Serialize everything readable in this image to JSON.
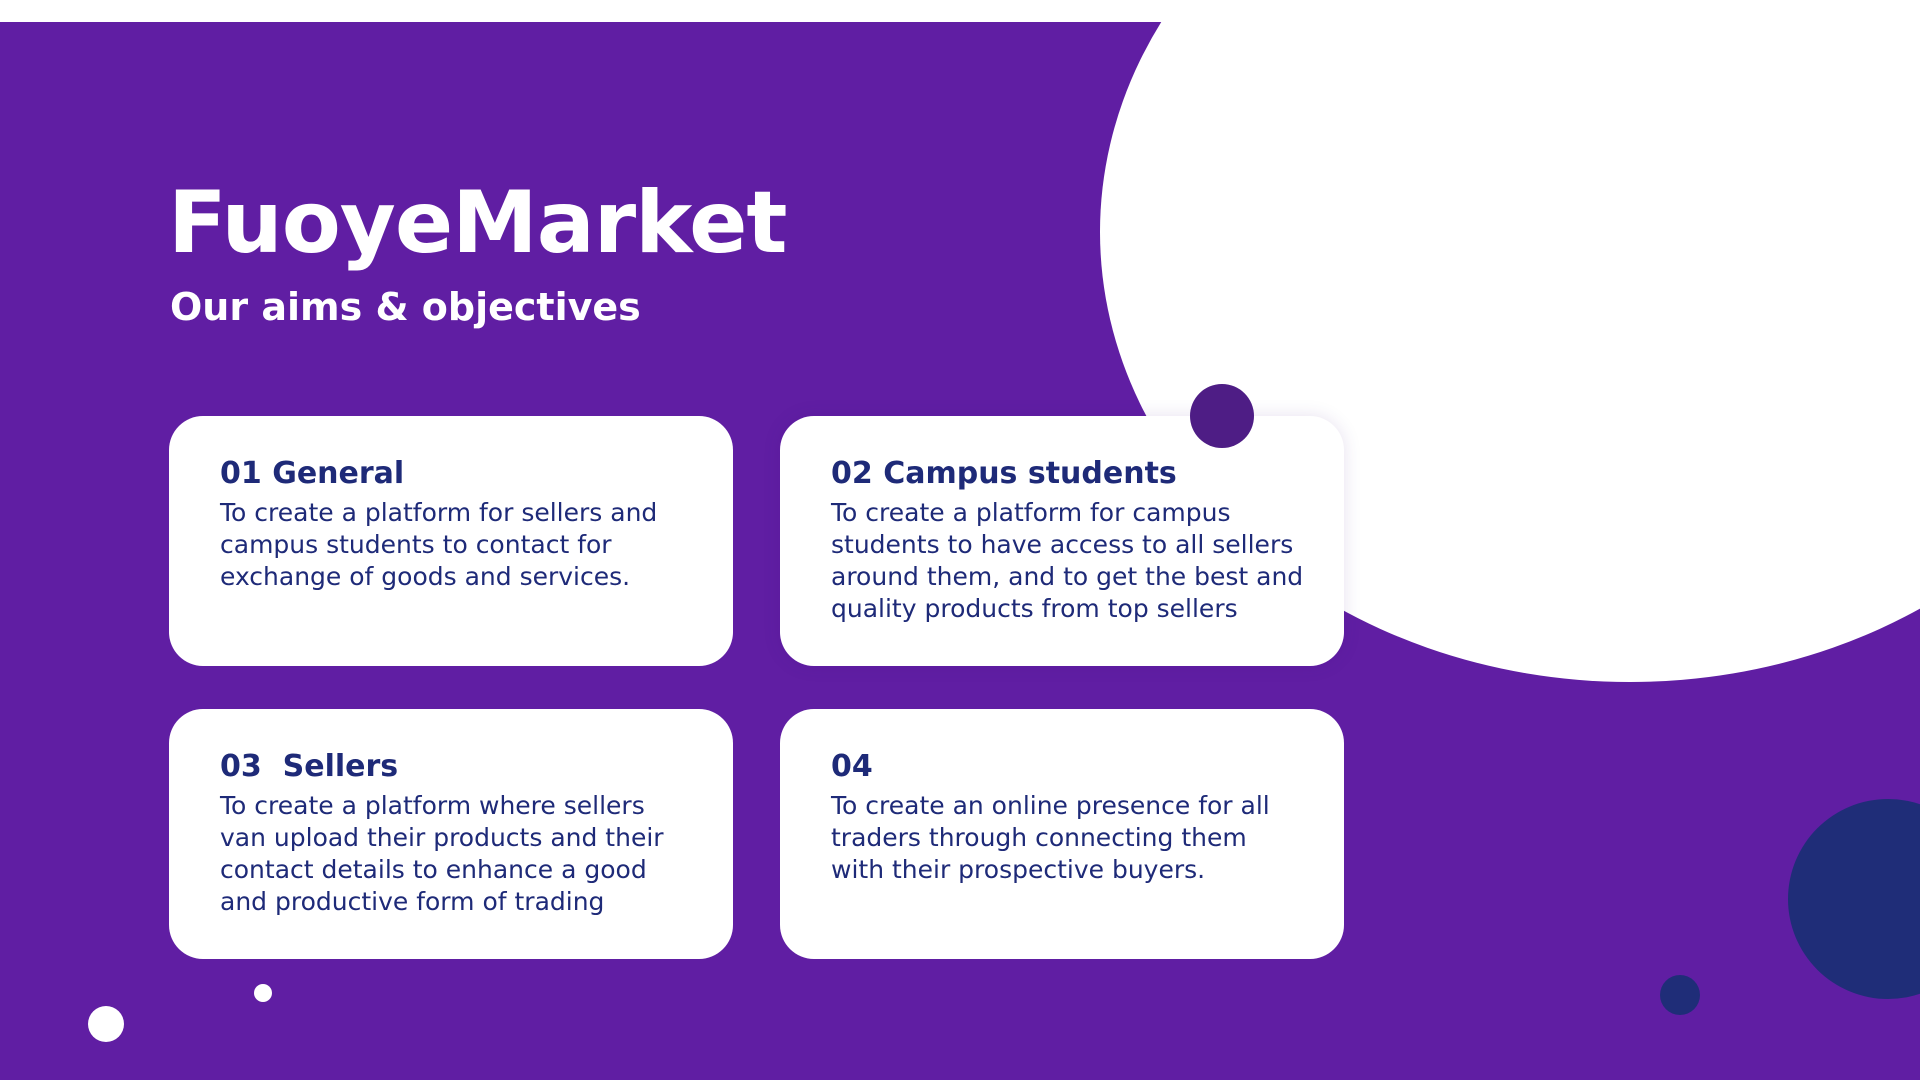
{
  "header": {
    "title": "FuoyeMarket",
    "subtitle": "Our aims & objectives"
  },
  "cards": [
    {
      "heading": "01 General",
      "body": "To create a platform for sellers and campus students to contact for exchange of goods and services."
    },
    {
      "heading": "02 Campus students",
      "body": "To create a platform for campus students to have access to all sellers around them, and to get the best and quality products from top sellers"
    },
    {
      "heading": "03  Sellers",
      "body": "To create a platform where sellers van upload their products and their contact details to enhance a good and productive form of trading"
    },
    {
      "heading": "04",
      "body": "To create an online presence for all traders through connecting them with their prospective buyers."
    }
  ],
  "colors": {
    "background": "#601ea3",
    "card": "#ffffff",
    "text_dark": "#1e2a78",
    "accent_purple": "#4e1d85",
    "accent_navy": "#1f2d78"
  }
}
